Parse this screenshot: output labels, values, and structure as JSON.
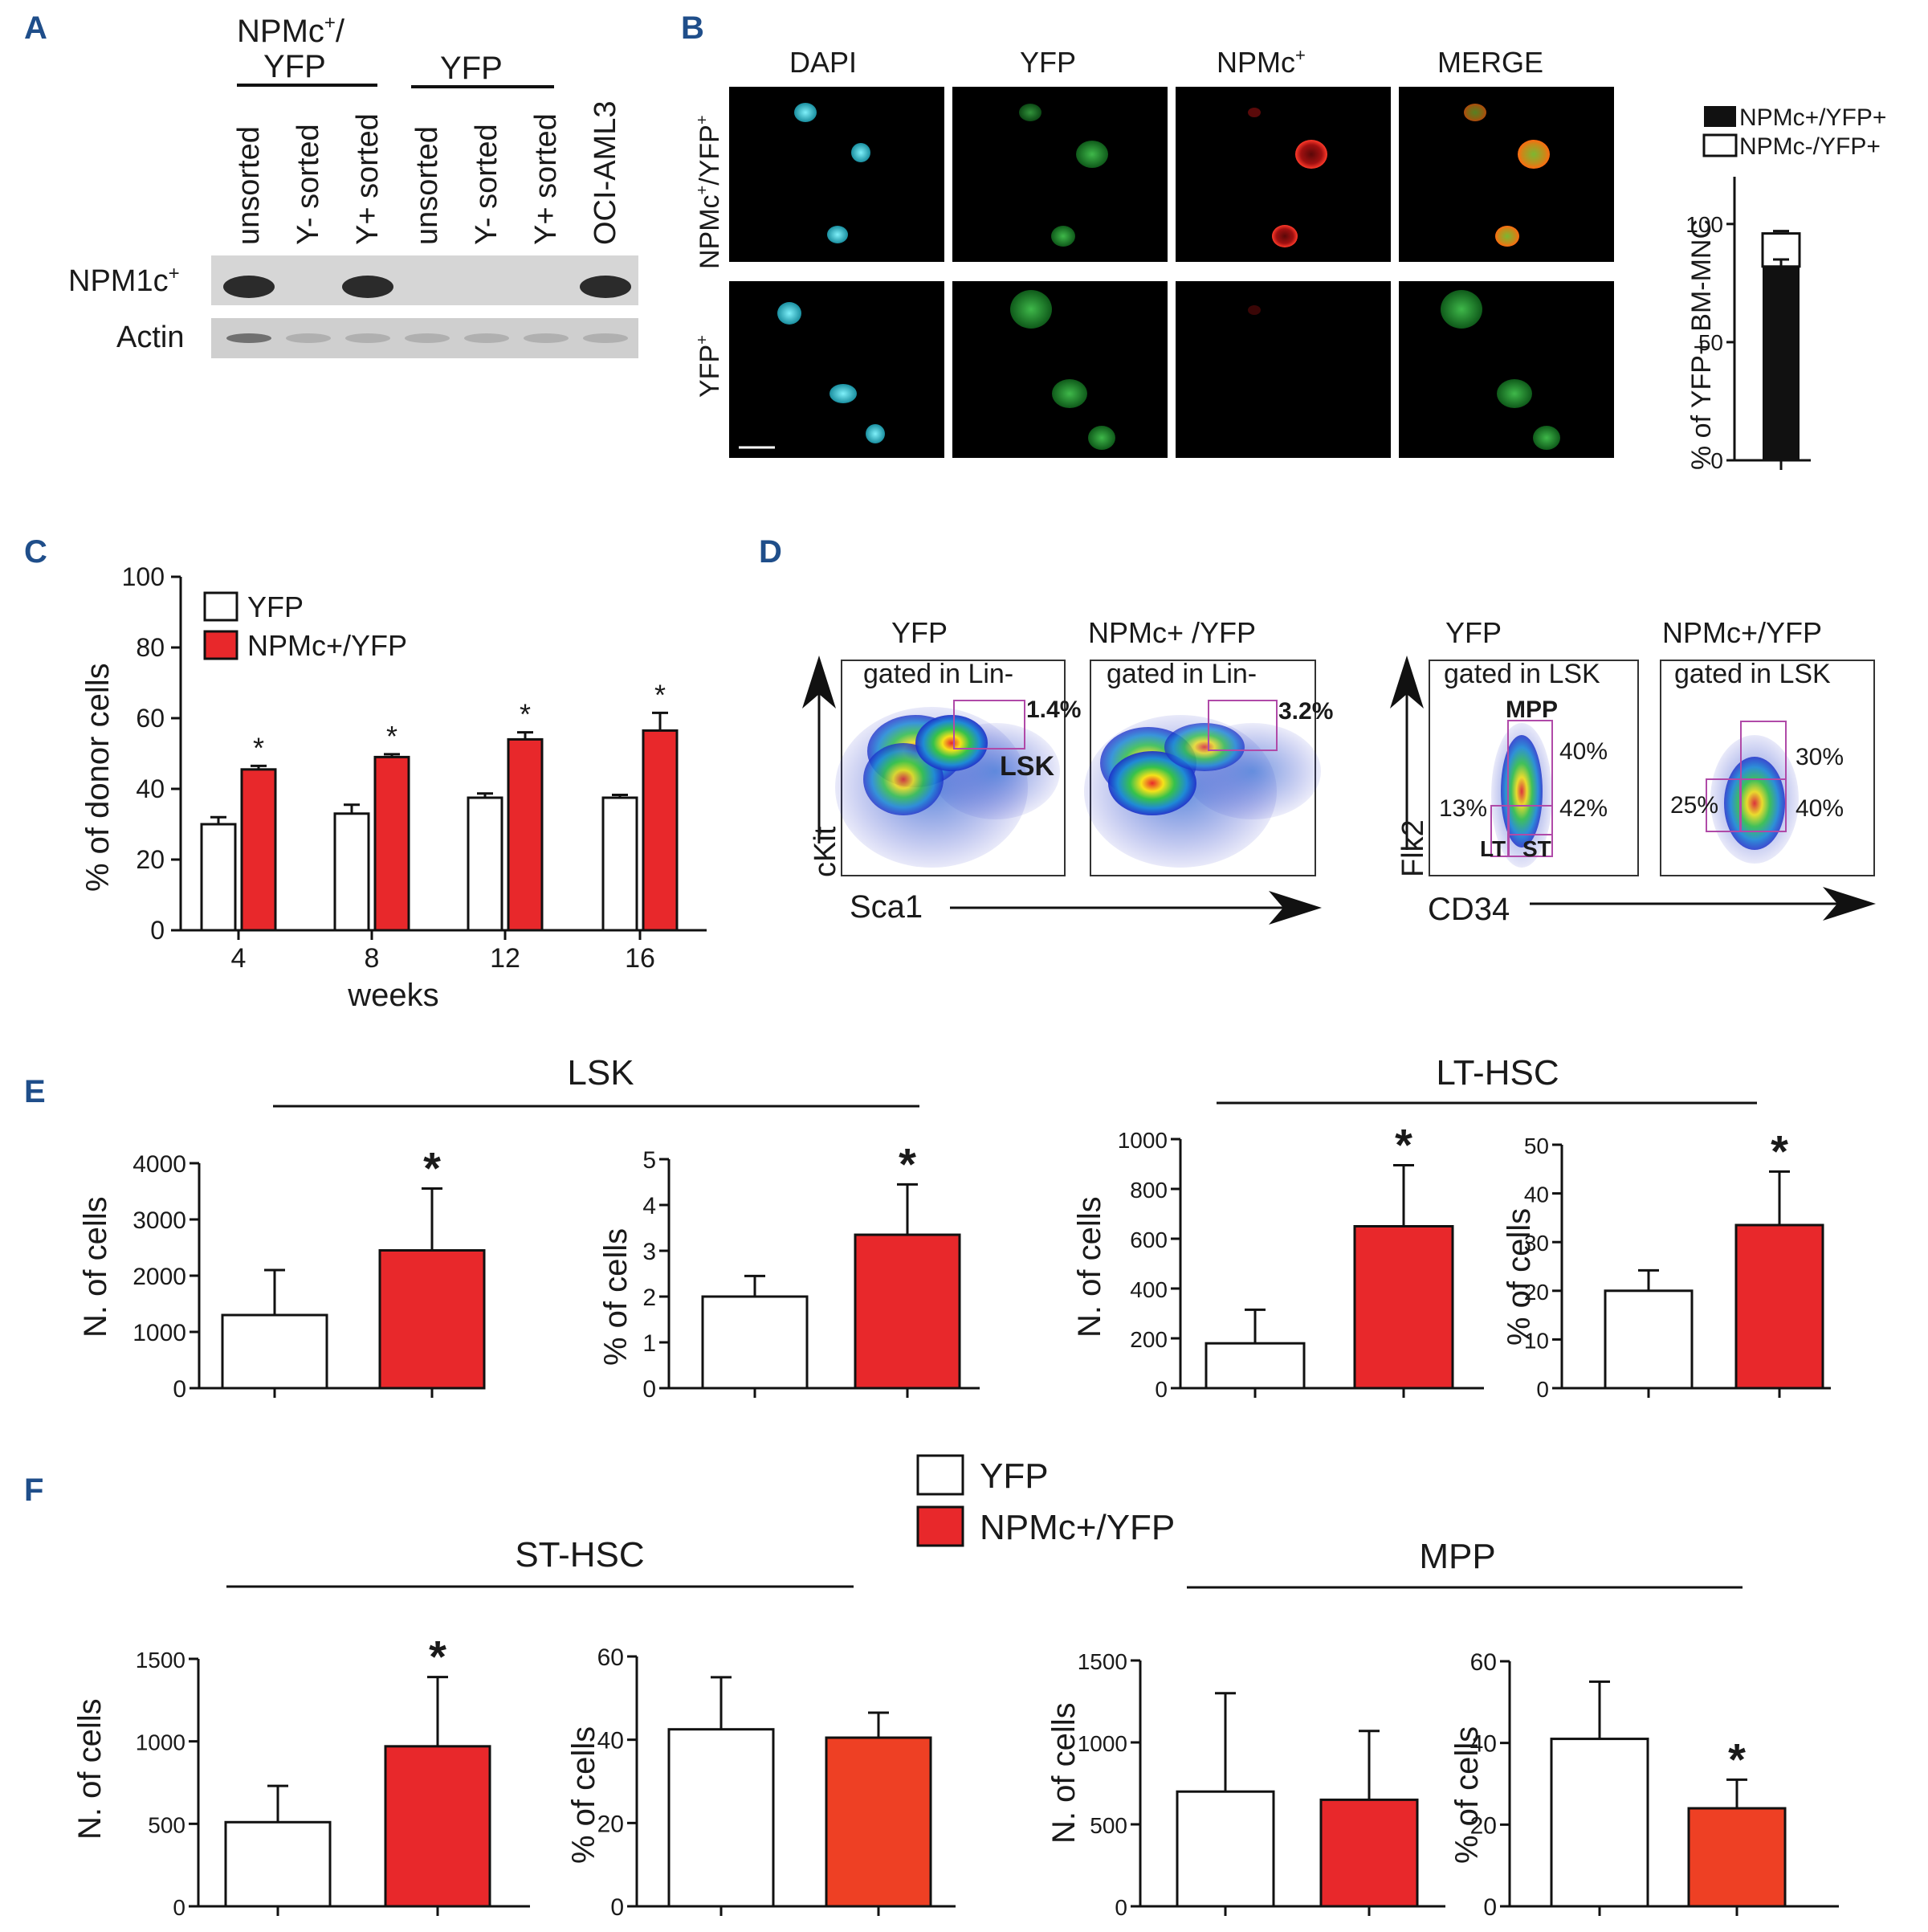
{
  "colors": {
    "red": "#e8282b",
    "orange_red": "#ee4024",
    "panel_label": "#1f4e8a",
    "black": "#111111",
    "cyan": "#3ad6e6",
    "green": "#2fa640"
  },
  "panels": {
    "A": "A",
    "B": "B",
    "C": "C",
    "D": "D",
    "E": "E",
    "F": "F"
  },
  "panelA": {
    "group1_line1": "NPMc",
    "group1_sup": "+",
    "group1_line1b": "/",
    "group1_line2": "YFP",
    "group2": "YFP",
    "lanes": [
      "unsorted",
      "Y- sorted",
      "Y+ sorted",
      "unsorted",
      "Y- sorted",
      "Y+ sorted",
      "OCI-AML3"
    ],
    "row1_label": "NPM1c",
    "row1_sup": "+",
    "row2_label": "Actin",
    "npm_band_present": [
      1,
      0,
      1,
      0,
      0,
      0,
      1
    ]
  },
  "panelB": {
    "columns": [
      "DAPI",
      "YFP",
      "NPMc",
      "MERGE"
    ],
    "col3_sup": "+",
    "row1_label": "NPMc",
    "row1_sup1": "+",
    "row1_mid": "/YFP",
    "row1_sup2": "+",
    "row2_label": "YFP",
    "row2_sup": "+",
    "legend_black": "NPMc+/YFP+",
    "legend_white": "NPMc-/YFP+",
    "chart_data": {
      "type": "bar",
      "title": "",
      "ylabel": "% of YFP+ BM-MNC",
      "ylim": [
        0,
        120
      ],
      "yticks": [
        "0",
        "50",
        "100"
      ],
      "tick_values": [
        0,
        50,
        100
      ],
      "series": [
        {
          "name": "NPMc+/YFP+",
          "values": [
            82
          ],
          "error": [
            3
          ]
        },
        {
          "name": "NPMc-/YFP+",
          "values": [
            14
          ],
          "error": [
            1
          ]
        }
      ],
      "stacked": true
    }
  },
  "panelC": {
    "chart_data": {
      "type": "bar",
      "categories": [
        "4",
        "8",
        "12",
        "16"
      ],
      "xlabel": "weeks",
      "ylabel": "% of donor cells",
      "ylim": [
        0,
        100
      ],
      "yticks": [
        "0",
        "20",
        "40",
        "60",
        "80",
        "100"
      ],
      "tick_values": [
        0,
        20,
        40,
        60,
        80,
        100
      ],
      "series": [
        {
          "name": "YFP",
          "values": [
            30,
            33,
            37.5,
            37.5
          ],
          "error": [
            2,
            2.5,
            1.2,
            0.8
          ]
        },
        {
          "name": "NPMc+/YFP",
          "values": [
            45.5,
            49,
            54,
            56.5
          ],
          "error": [
            1,
            0.8,
            2,
            5
          ]
        }
      ],
      "significance": [
        "*",
        "*",
        "*",
        "*"
      ]
    },
    "legend": [
      "YFP",
      "NPMc+/YFP"
    ]
  },
  "panelD": {
    "left_titles": [
      "YFP",
      "NPMc+ /YFP"
    ],
    "left_gate": "gated in Lin-",
    "left_pcts": [
      "1.4%",
      "3.2%"
    ],
    "lsk_label": "LSK",
    "left_ylabel": "cKit",
    "left_xlabel": "Sca1",
    "right_titles": [
      "YFP",
      "NPMc+/YFP"
    ],
    "right_gate": "gated in LSK",
    "right1_pcts": [
      "40%",
      "13%",
      "42%"
    ],
    "right2_pcts": [
      "30%",
      "25%",
      "40%"
    ],
    "mpp": "MPP",
    "lt": "LT",
    "st": "ST",
    "right_ylabel": "Flk2",
    "right_xlabel": "CD34"
  },
  "panelE": {
    "lsk_title": "LSK",
    "lthsc_title": "LT-HSC",
    "charts": [
      {
        "type": "bar",
        "ylabel": "N. of cells",
        "ylim": [
          0,
          4000
        ],
        "yticks": [
          "0",
          "1000",
          "2000",
          "3000",
          "4000"
        ],
        "tick_values": [
          0,
          1000,
          2000,
          3000,
          4000
        ],
        "categories": [
          "YFP",
          "NPMc+/YFP"
        ],
        "values": [
          1300,
          2450
        ],
        "error": [
          800,
          1100
        ],
        "sig": [
          null,
          "*"
        ]
      },
      {
        "type": "bar",
        "ylabel": "% of cells",
        "ylim": [
          0,
          5
        ],
        "yticks": [
          "0",
          "1",
          "2",
          "3",
          "4",
          "5"
        ],
        "tick_values": [
          0,
          1,
          2,
          3,
          4,
          5
        ],
        "categories": [
          "YFP",
          "NPMc+/YFP"
        ],
        "values": [
          2.0,
          3.35
        ],
        "error": [
          0.45,
          1.1
        ],
        "sig": [
          null,
          "*"
        ]
      },
      {
        "type": "bar",
        "ylabel": "N. of cells",
        "ylim": [
          0,
          1000
        ],
        "yticks": [
          "0",
          "200",
          "400",
          "600",
          "800",
          "1000"
        ],
        "tick_values": [
          0,
          200,
          400,
          600,
          800,
          1000
        ],
        "categories": [
          "YFP",
          "NPMc+/YFP"
        ],
        "values": [
          180,
          650
        ],
        "error": [
          135,
          245
        ],
        "sig": [
          null,
          "*"
        ]
      },
      {
        "type": "bar",
        "ylabel": "% of cells",
        "ylim": [
          0,
          50
        ],
        "yticks": [
          "0",
          "10",
          "20",
          "30",
          "40",
          "50"
        ],
        "tick_values": [
          0,
          10,
          20,
          30,
          40,
          50
        ],
        "categories": [
          "YFP",
          "NPMc+/YFP"
        ],
        "values": [
          20,
          33.5
        ],
        "error": [
          4.2,
          11
        ],
        "sig": [
          null,
          "*"
        ]
      }
    ]
  },
  "panelF": {
    "legend": [
      "YFP",
      "NPMc+/YFP"
    ],
    "sthsc_title": "ST-HSC",
    "mpp_title": "MPP",
    "charts": [
      {
        "type": "bar",
        "ylabel": "N. of cells",
        "ylim": [
          0,
          1500
        ],
        "yticks": [
          "0",
          "500",
          "1000",
          "1500"
        ],
        "tick_values": [
          0,
          500,
          1000,
          1500
        ],
        "categories": [
          "YFP",
          "NPMc+/YFP"
        ],
        "values": [
          510,
          970
        ],
        "error": [
          220,
          420
        ],
        "sig": [
          null,
          "*"
        ]
      },
      {
        "type": "bar",
        "ylabel": "% of cells",
        "ylim": [
          0,
          60
        ],
        "yticks": [
          "0",
          "20",
          "40",
          "60"
        ],
        "tick_values": [
          0,
          20,
          40,
          60
        ],
        "categories": [
          "YFP",
          "NPMc+/YFP"
        ],
        "values": [
          42.5,
          40.5
        ],
        "error": [
          12.5,
          6
        ],
        "sig": [
          null,
          null
        ]
      },
      {
        "type": "bar",
        "ylabel": "N. of cells",
        "ylim": [
          0,
          1500
        ],
        "yticks": [
          "0",
          "500",
          "1000",
          "1500"
        ],
        "tick_values": [
          0,
          500,
          1000,
          1500
        ],
        "categories": [
          "YFP",
          "NPMc+/YFP"
        ],
        "values": [
          700,
          650
        ],
        "error": [
          600,
          420
        ],
        "sig": [
          null,
          null
        ]
      },
      {
        "type": "bar",
        "ylabel": "% of cells",
        "ylim": [
          0,
          60
        ],
        "yticks": [
          "0",
          "20",
          "40",
          "60"
        ],
        "tick_values": [
          0,
          20,
          40,
          60
        ],
        "categories": [
          "YFP",
          "NPMc+/YFP"
        ],
        "values": [
          41,
          24
        ],
        "error": [
          14,
          7
        ],
        "sig": [
          null,
          "*"
        ]
      }
    ]
  }
}
